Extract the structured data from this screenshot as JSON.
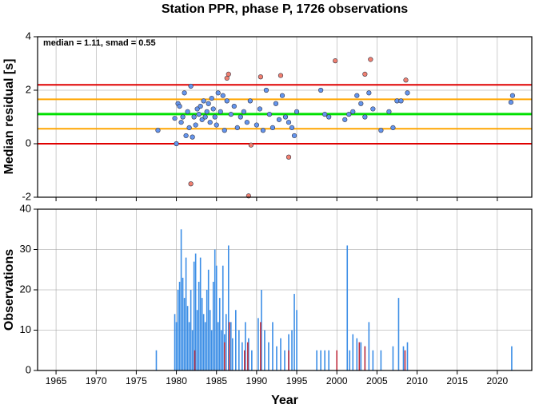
{
  "chart_data": [
    {
      "type": "scatter",
      "title": "Station PPR, phase P, 1726 observations",
      "ylabel": "Median residual [s]",
      "annotation": "median = 1.11, smad = 0.55",
      "ylim": [
        -2,
        4
      ],
      "yticks": [
        -2,
        0,
        2,
        4
      ],
      "grid": true,
      "lines": [
        {
          "value": 2.2,
          "color": "#e00000"
        },
        {
          "value": 1.66,
          "color": "#ffa500"
        },
        {
          "value": 1.11,
          "color": "#00e000"
        },
        {
          "value": 0.56,
          "color": "#ffa500"
        },
        {
          "value": 0,
          "color": "#e00000"
        }
      ],
      "series": [
        {
          "color": "#6495ed",
          "x": [
            1977.7,
            1979.8,
            1980,
            1980.2,
            1980.4,
            1980.6,
            1980.8,
            1981,
            1981.2,
            1981.4,
            1981.6,
            1981.8,
            1982,
            1982.2,
            1982.4,
            1982.6,
            1982.8,
            1983,
            1983.2,
            1983.4,
            1983.6,
            1983.8,
            1984,
            1984.2,
            1984.4,
            1984.6,
            1984.8,
            1985,
            1985.2,
            1985.5,
            1985.8,
            1986,
            1986.3,
            1986.8,
            1987.2,
            1987.6,
            1988,
            1988.4,
            1988.8,
            1989.2,
            1990,
            1990.4,
            1990.8,
            1991.2,
            1991.6,
            1992,
            1992.4,
            1992.8,
            1993.2,
            1993.6,
            1994,
            1994.4,
            1994.7,
            1995,
            1998,
            1998.5,
            1999,
            2001,
            2001.5,
            2002,
            2002.5,
            2003,
            2003.5,
            2004,
            2004.5,
            2005.5,
            2006.5,
            2007,
            2007.5,
            2008,
            2008.8,
            2021.7,
            2021.9
          ],
          "values": [
            0.5,
            0.95,
            0.0,
            1.5,
            1.4,
            0.8,
            1.0,
            1.9,
            0.3,
            1.2,
            0.6,
            2.15,
            0.25,
            1.0,
            0.7,
            1.3,
            1.1,
            1.4,
            0.9,
            1.6,
            1.0,
            1.2,
            1.5,
            0.8,
            1.7,
            1.3,
            1.0,
            0.7,
            1.9,
            1.2,
            1.8,
            0.5,
            1.6,
            1.1,
            1.4,
            0.6,
            1.0,
            1.2,
            0.8,
            1.6,
            0.7,
            1.3,
            0.5,
            2.0,
            1.1,
            0.6,
            1.5,
            0.9,
            1.8,
            1.0,
            0.8,
            0.6,
            0.3,
            1.2,
            2.0,
            1.1,
            1.0,
            0.9,
            1.1,
            1.2,
            1.8,
            1.5,
            1.0,
            1.9,
            1.3,
            0.5,
            1.2,
            0.6,
            1.6,
            1.6,
            1.9,
            1.55,
            1.8
          ]
        },
        {
          "color": "#f08070",
          "x": [
            1981.8,
            1986.3,
            1986.5,
            1989,
            1989.3,
            1990.5,
            1993,
            1994,
            1999.8,
            2003.5,
            2004.2,
            2008.6
          ],
          "values": [
            -1.5,
            2.45,
            2.6,
            -1.95,
            -0.05,
            2.5,
            2.55,
            -0.5,
            3.1,
            2.6,
            3.15,
            2.38
          ]
        }
      ]
    },
    {
      "type": "bar",
      "xlabel": "Year",
      "ylabel": "Observations",
      "xlim": [
        1962.7,
        2024.3
      ],
      "xticks": [
        1965,
        1970,
        1975,
        1980,
        1985,
        1990,
        1995,
        2000,
        2005,
        2010,
        2015,
        2020
      ],
      "ylim": [
        0,
        40
      ],
      "yticks": [
        0,
        10,
        20,
        30,
        40
      ],
      "grid": true,
      "series": [
        {
          "color": "#3c8ee6",
          "x": [
            1977.5,
            1979.8,
            1980.0,
            1980.2,
            1980.4,
            1980.6,
            1980.8,
            1981.0,
            1981.2,
            1981.4,
            1981.6,
            1981.8,
            1982.0,
            1982.2,
            1982.4,
            1982.6,
            1982.8,
            1983.0,
            1983.2,
            1983.4,
            1983.6,
            1983.8,
            1984.0,
            1984.2,
            1984.4,
            1984.6,
            1984.8,
            1985.0,
            1985.2,
            1985.4,
            1985.6,
            1985.8,
            1986.0,
            1986.2,
            1986.5,
            1986.8,
            1987.0,
            1987.4,
            1987.8,
            1988.2,
            1988.6,
            1989.0,
            1989.4,
            1990.2,
            1990.6,
            1991.0,
            1991.5,
            1992.0,
            1992.5,
            1993.0,
            1993.5,
            1994.0,
            1994.4,
            1994.7,
            1995.0,
            1997.5,
            1998.0,
            1998.5,
            1999.0,
            2001.3,
            2001.6,
            2002.0,
            2002.5,
            2003.0,
            2003.5,
            2004.0,
            2004.5,
            2005.5,
            2007.0,
            2007.7,
            2008.3,
            2008.8,
            2021.8
          ],
          "values": [
            5,
            14,
            12,
            20,
            22,
            35,
            23,
            18,
            28,
            16,
            12,
            20,
            10,
            27,
            29,
            15,
            22,
            28,
            18,
            14,
            12,
            20,
            25,
            15,
            10,
            22,
            30,
            26,
            12,
            18,
            10,
            26,
            9,
            14,
            31,
            12,
            8,
            15,
            10,
            7,
            12,
            8,
            5,
            13,
            20,
            10,
            7,
            12,
            6,
            8,
            5,
            9,
            10,
            19,
            15,
            5,
            5,
            5,
            5,
            31,
            5,
            9,
            8,
            7,
            6,
            12,
            5,
            5,
            6,
            18,
            6,
            7,
            6
          ]
        },
        {
          "color": "#c03040",
          "x": [
            1982.3,
            1986.0,
            1986.6,
            1988.5,
            1988.9,
            1990.5,
            1994.0,
            2000.0,
            2002.8,
            2003.5,
            2008.5
          ],
          "values": [
            5,
            7,
            12,
            5,
            7,
            12,
            5,
            5,
            7,
            6,
            5
          ]
        }
      ]
    }
  ]
}
